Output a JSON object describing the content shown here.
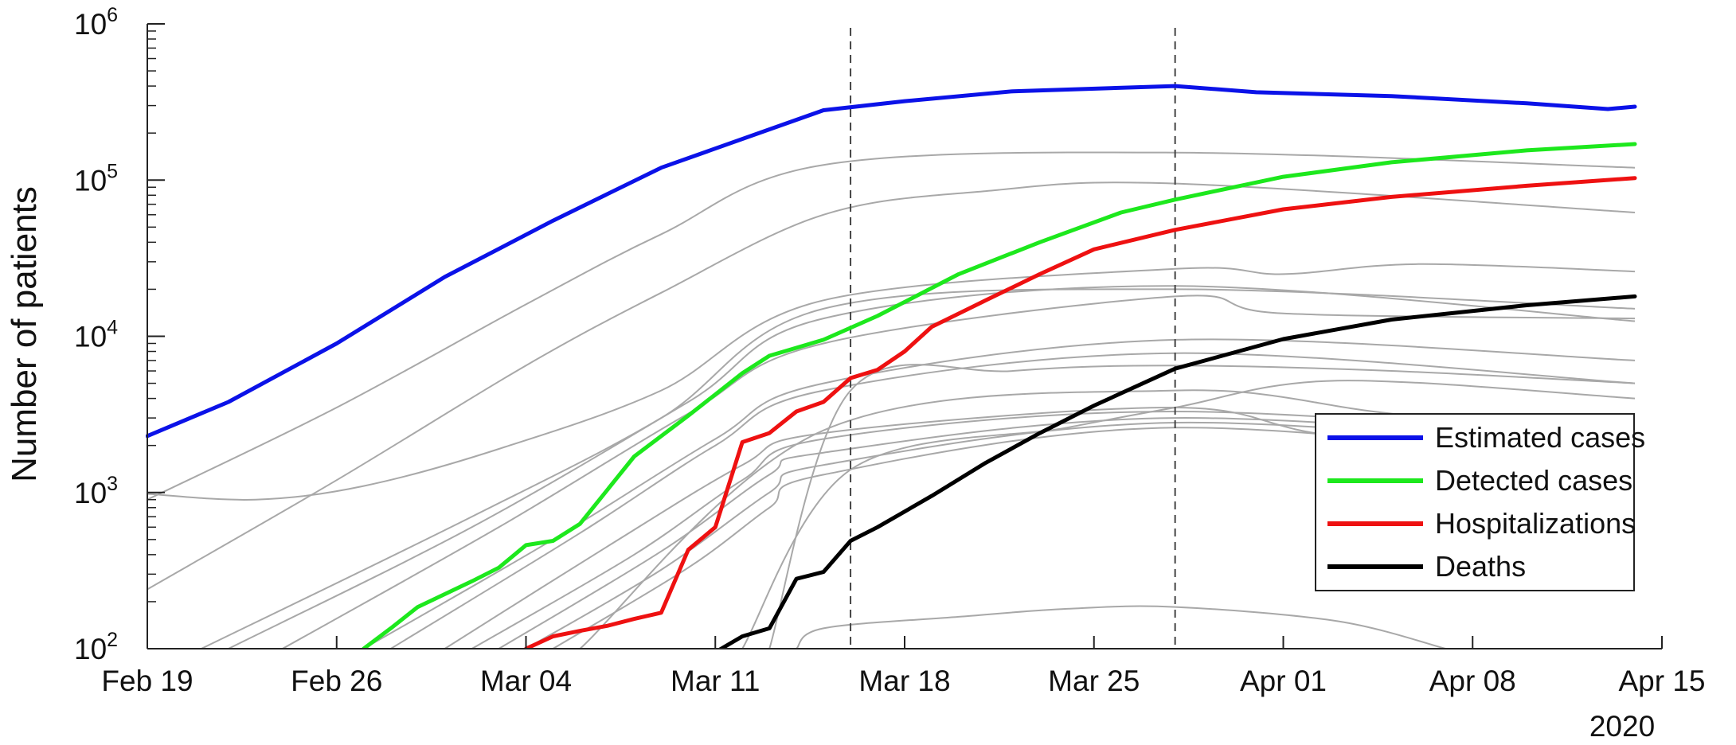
{
  "chart_data": {
    "type": "line",
    "ylabel": "Number of patients",
    "xlabel": "",
    "y_scale": "log",
    "ylim": [
      100,
      1000000
    ],
    "y_ticks": [
      {
        "value": 100,
        "base": "10",
        "exp": "2"
      },
      {
        "value": 1000,
        "base": "10",
        "exp": "3"
      },
      {
        "value": 10000,
        "base": "10",
        "exp": "4"
      },
      {
        "value": 100000,
        "base": "10",
        "exp": "5"
      },
      {
        "value": 1000000,
        "base": "10",
        "exp": "6"
      }
    ],
    "xlim": [
      "2020-02-19",
      "2020-04-15"
    ],
    "x_ticks": [
      {
        "date": "2020-02-19",
        "label": "Feb 19"
      },
      {
        "date": "2020-02-26",
        "label": "Feb 26"
      },
      {
        "date": "2020-03-04",
        "label": "Mar 04"
      },
      {
        "date": "2020-03-11",
        "label": "Mar 11"
      },
      {
        "date": "2020-03-18",
        "label": "Mar 18"
      },
      {
        "date": "2020-03-25",
        "label": "Mar 25"
      },
      {
        "date": "2020-04-01",
        "label": "Apr 01"
      },
      {
        "date": "2020-04-08",
        "label": "Apr 08"
      },
      {
        "date": "2020-04-15",
        "label": "Apr 15"
      }
    ],
    "year_label": "2020",
    "vertical_lines": [
      "2020-03-16",
      "2020-03-28"
    ],
    "legend_position": "right",
    "series": [
      {
        "name": "Estimated cases",
        "color": "#0b12e8",
        "width": 5,
        "points": [
          [
            "2020-02-19",
            2300
          ],
          [
            "2020-02-22",
            3800
          ],
          [
            "2020-02-26",
            9000
          ],
          [
            "2020-03-01",
            24000
          ],
          [
            "2020-03-05",
            55000
          ],
          [
            "2020-03-09",
            120000
          ],
          [
            "2020-03-15",
            280000
          ],
          [
            "2020-03-18",
            320000
          ],
          [
            "2020-03-22",
            370000
          ],
          [
            "2020-03-28",
            400000
          ],
          [
            "2020-03-31",
            365000
          ],
          [
            "2020-04-05",
            345000
          ],
          [
            "2020-04-10",
            310000
          ],
          [
            "2020-04-13",
            285000
          ],
          [
            "2020-04-14",
            295000
          ]
        ]
      },
      {
        "name": "Detected cases",
        "color": "#1de81d",
        "width": 5,
        "points": [
          [
            "2020-02-27",
            100
          ],
          [
            "2020-02-28",
            135
          ],
          [
            "2020-02-29",
            185
          ],
          [
            "2020-03-02",
            270
          ],
          [
            "2020-03-03",
            330
          ],
          [
            "2020-03-04",
            460
          ],
          [
            "2020-03-05",
            490
          ],
          [
            "2020-03-06",
            630
          ],
          [
            "2020-03-08",
            1700
          ],
          [
            "2020-03-10",
            3100
          ],
          [
            "2020-03-12",
            5800
          ],
          [
            "2020-03-13",
            7500
          ],
          [
            "2020-03-15",
            9500
          ],
          [
            "2020-03-17",
            13500
          ],
          [
            "2020-03-20",
            25000
          ],
          [
            "2020-03-23",
            40000
          ],
          [
            "2020-03-26",
            62000
          ],
          [
            "2020-03-28",
            75000
          ],
          [
            "2020-04-01",
            105000
          ],
          [
            "2020-04-05",
            130000
          ],
          [
            "2020-04-10",
            155000
          ],
          [
            "2020-04-14",
            170000
          ]
        ]
      },
      {
        "name": "Hospitalizations",
        "color": "#ee1111",
        "width": 5,
        "points": [
          [
            "2020-03-04",
            100
          ],
          [
            "2020-03-05",
            120
          ],
          [
            "2020-03-06",
            130
          ],
          [
            "2020-03-07",
            140
          ],
          [
            "2020-03-08",
            155
          ],
          [
            "2020-03-09",
            170
          ],
          [
            "2020-03-10",
            430
          ],
          [
            "2020-03-11",
            600
          ],
          [
            "2020-03-12",
            2100
          ],
          [
            "2020-03-13",
            2400
          ],
          [
            "2020-03-14",
            3300
          ],
          [
            "2020-03-15",
            3800
          ],
          [
            "2020-03-16",
            5400
          ],
          [
            "2020-03-17",
            6100
          ],
          [
            "2020-03-18",
            8000
          ],
          [
            "2020-03-19",
            11500
          ],
          [
            "2020-03-21",
            17000
          ],
          [
            "2020-03-23",
            25000
          ],
          [
            "2020-03-25",
            36000
          ],
          [
            "2020-03-28",
            48000
          ],
          [
            "2020-04-01",
            65000
          ],
          [
            "2020-04-05",
            78000
          ],
          [
            "2020-04-10",
            92000
          ],
          [
            "2020-04-14",
            103000
          ]
        ]
      },
      {
        "name": "Deaths",
        "color": "#000000",
        "width": 5,
        "points": [
          [
            "2020-03-11",
            95
          ],
          [
            "2020-03-12",
            120
          ],
          [
            "2020-03-13",
            135
          ],
          [
            "2020-03-14",
            280
          ],
          [
            "2020-03-15",
            310
          ],
          [
            "2020-03-16",
            490
          ],
          [
            "2020-03-17",
            600
          ],
          [
            "2020-03-19",
            950
          ],
          [
            "2020-03-21",
            1550
          ],
          [
            "2020-03-23",
            2400
          ],
          [
            "2020-03-25",
            3600
          ],
          [
            "2020-03-28",
            6200
          ],
          [
            "2020-04-01",
            9600
          ],
          [
            "2020-04-05",
            12800
          ],
          [
            "2020-04-10",
            15800
          ],
          [
            "2020-04-14",
            18000
          ]
        ]
      }
    ],
    "background_series": {
      "color": "#a8a8a8",
      "lines": [
        [
          [
            "2020-02-19",
            900
          ],
          [
            "2020-02-26",
            3500
          ],
          [
            "2020-03-04",
            16000
          ],
          [
            "2020-03-09",
            45000
          ],
          [
            "2020-03-15",
            125000
          ],
          [
            "2020-03-28",
            150000
          ],
          [
            "2020-04-14",
            120000
          ]
        ],
        [
          [
            "2020-02-19",
            240
          ],
          [
            "2020-02-26",
            1200
          ],
          [
            "2020-03-04",
            6500
          ],
          [
            "2020-03-09",
            19000
          ],
          [
            "2020-03-15",
            60000
          ],
          [
            "2020-03-21",
            85000
          ],
          [
            "2020-03-28",
            95000
          ],
          [
            "2020-04-14",
            62000
          ]
        ],
        [
          [
            "2020-02-19",
            980
          ],
          [
            "2020-02-23",
            900
          ],
          [
            "2020-02-27",
            1100
          ],
          [
            "2020-03-03",
            1900
          ],
          [
            "2020-03-09",
            4500
          ],
          [
            "2020-03-15",
            17000
          ],
          [
            "2020-03-28",
            27000
          ],
          [
            "2020-04-01",
            25000
          ],
          [
            "2020-04-06",
            29000
          ],
          [
            "2020-04-14",
            26000
          ]
        ],
        [
          [
            "2020-02-21",
            100
          ],
          [
            "2020-03-02",
            700
          ],
          [
            "2020-03-09",
            3000
          ],
          [
            "2020-03-15",
            15000
          ],
          [
            "2020-03-28",
            20000
          ],
          [
            "2020-04-14",
            15000
          ]
        ],
        [
          [
            "2020-02-22",
            100
          ],
          [
            "2020-03-02",
            600
          ],
          [
            "2020-03-10",
            3800
          ],
          [
            "2020-03-15",
            13000
          ],
          [
            "2020-03-28",
            21000
          ],
          [
            "2020-04-14",
            12500
          ]
        ],
        [
          [
            "2020-02-24",
            100
          ],
          [
            "2020-03-03",
            600
          ],
          [
            "2020-03-10",
            3200
          ],
          [
            "2020-03-15",
            9000
          ],
          [
            "2020-03-28",
            18000
          ],
          [
            "2020-04-01",
            14000
          ],
          [
            "2020-04-14",
            13000
          ]
        ],
        [
          [
            "2020-02-27",
            100
          ],
          [
            "2020-03-05",
            500
          ],
          [
            "2020-03-11",
            2200
          ],
          [
            "2020-03-15",
            5000
          ],
          [
            "2020-03-28",
            9500
          ],
          [
            "2020-04-14",
            7000
          ]
        ],
        [
          [
            "2020-02-28",
            100
          ],
          [
            "2020-03-06",
            550
          ],
          [
            "2020-03-11",
            2000
          ],
          [
            "2020-03-15",
            4500
          ],
          [
            "2020-03-28",
            7800
          ],
          [
            "2020-04-14",
            5000
          ]
        ],
        [
          [
            "2020-03-01",
            100
          ],
          [
            "2020-03-07",
            450
          ],
          [
            "2020-03-12",
            1500
          ],
          [
            "2020-03-15",
            2400
          ],
          [
            "2020-03-28",
            3500
          ],
          [
            "2020-04-03",
            2300
          ],
          [
            "2020-04-14",
            1800
          ]
        ],
        [
          [
            "2020-03-02",
            100
          ],
          [
            "2020-03-08",
            400
          ],
          [
            "2020-03-12",
            1200
          ],
          [
            "2020-03-15",
            2200
          ],
          [
            "2020-03-28",
            3300
          ],
          [
            "2020-04-14",
            2200
          ]
        ],
        [
          [
            "2020-03-03",
            100
          ],
          [
            "2020-03-09",
            420
          ],
          [
            "2020-03-13",
            1300
          ],
          [
            "2020-03-15",
            1800
          ],
          [
            "2020-03-28",
            3000
          ],
          [
            "2020-04-14",
            2000
          ]
        ],
        [
          [
            "2020-03-04",
            100
          ],
          [
            "2020-03-09",
            320
          ],
          [
            "2020-03-13",
            1000
          ],
          [
            "2020-03-15",
            1500
          ],
          [
            "2020-03-28",
            2800
          ],
          [
            "2020-04-14",
            1800
          ]
        ],
        [
          [
            "2020-03-05",
            100
          ],
          [
            "2020-03-10",
            330
          ],
          [
            "2020-03-13",
            800
          ],
          [
            "2020-03-15",
            1300
          ],
          [
            "2020-03-28",
            2600
          ],
          [
            "2020-04-14",
            1500
          ]
        ],
        [
          [
            "2020-03-06",
            100
          ],
          [
            "2020-03-15",
            2500
          ],
          [
            "2020-03-28",
            4500
          ],
          [
            "2020-04-05",
            3200
          ],
          [
            "2020-04-14",
            2300
          ]
        ],
        [
          [
            "2020-03-12",
            100
          ],
          [
            "2020-03-16",
            1400
          ],
          [
            "2020-03-24",
            2600
          ],
          [
            "2020-03-28",
            3500
          ],
          [
            "2020-04-03",
            5200
          ],
          [
            "2020-04-14",
            4000
          ]
        ],
        [
          [
            "2020-03-13",
            100
          ],
          [
            "2020-03-16",
            4500
          ],
          [
            "2020-03-22",
            6000
          ],
          [
            "2020-03-28",
            6500
          ],
          [
            "2020-04-05",
            6000
          ],
          [
            "2020-04-14",
            5000
          ]
        ],
        [
          [
            "2020-03-14",
            100
          ],
          [
            "2020-03-15",
            135
          ],
          [
            "2020-03-20",
            160
          ],
          [
            "2020-03-24",
            180
          ],
          [
            "2020-03-28",
            185
          ],
          [
            "2020-04-03",
            150
          ],
          [
            "2020-04-07",
            100
          ]
        ]
      ]
    }
  }
}
